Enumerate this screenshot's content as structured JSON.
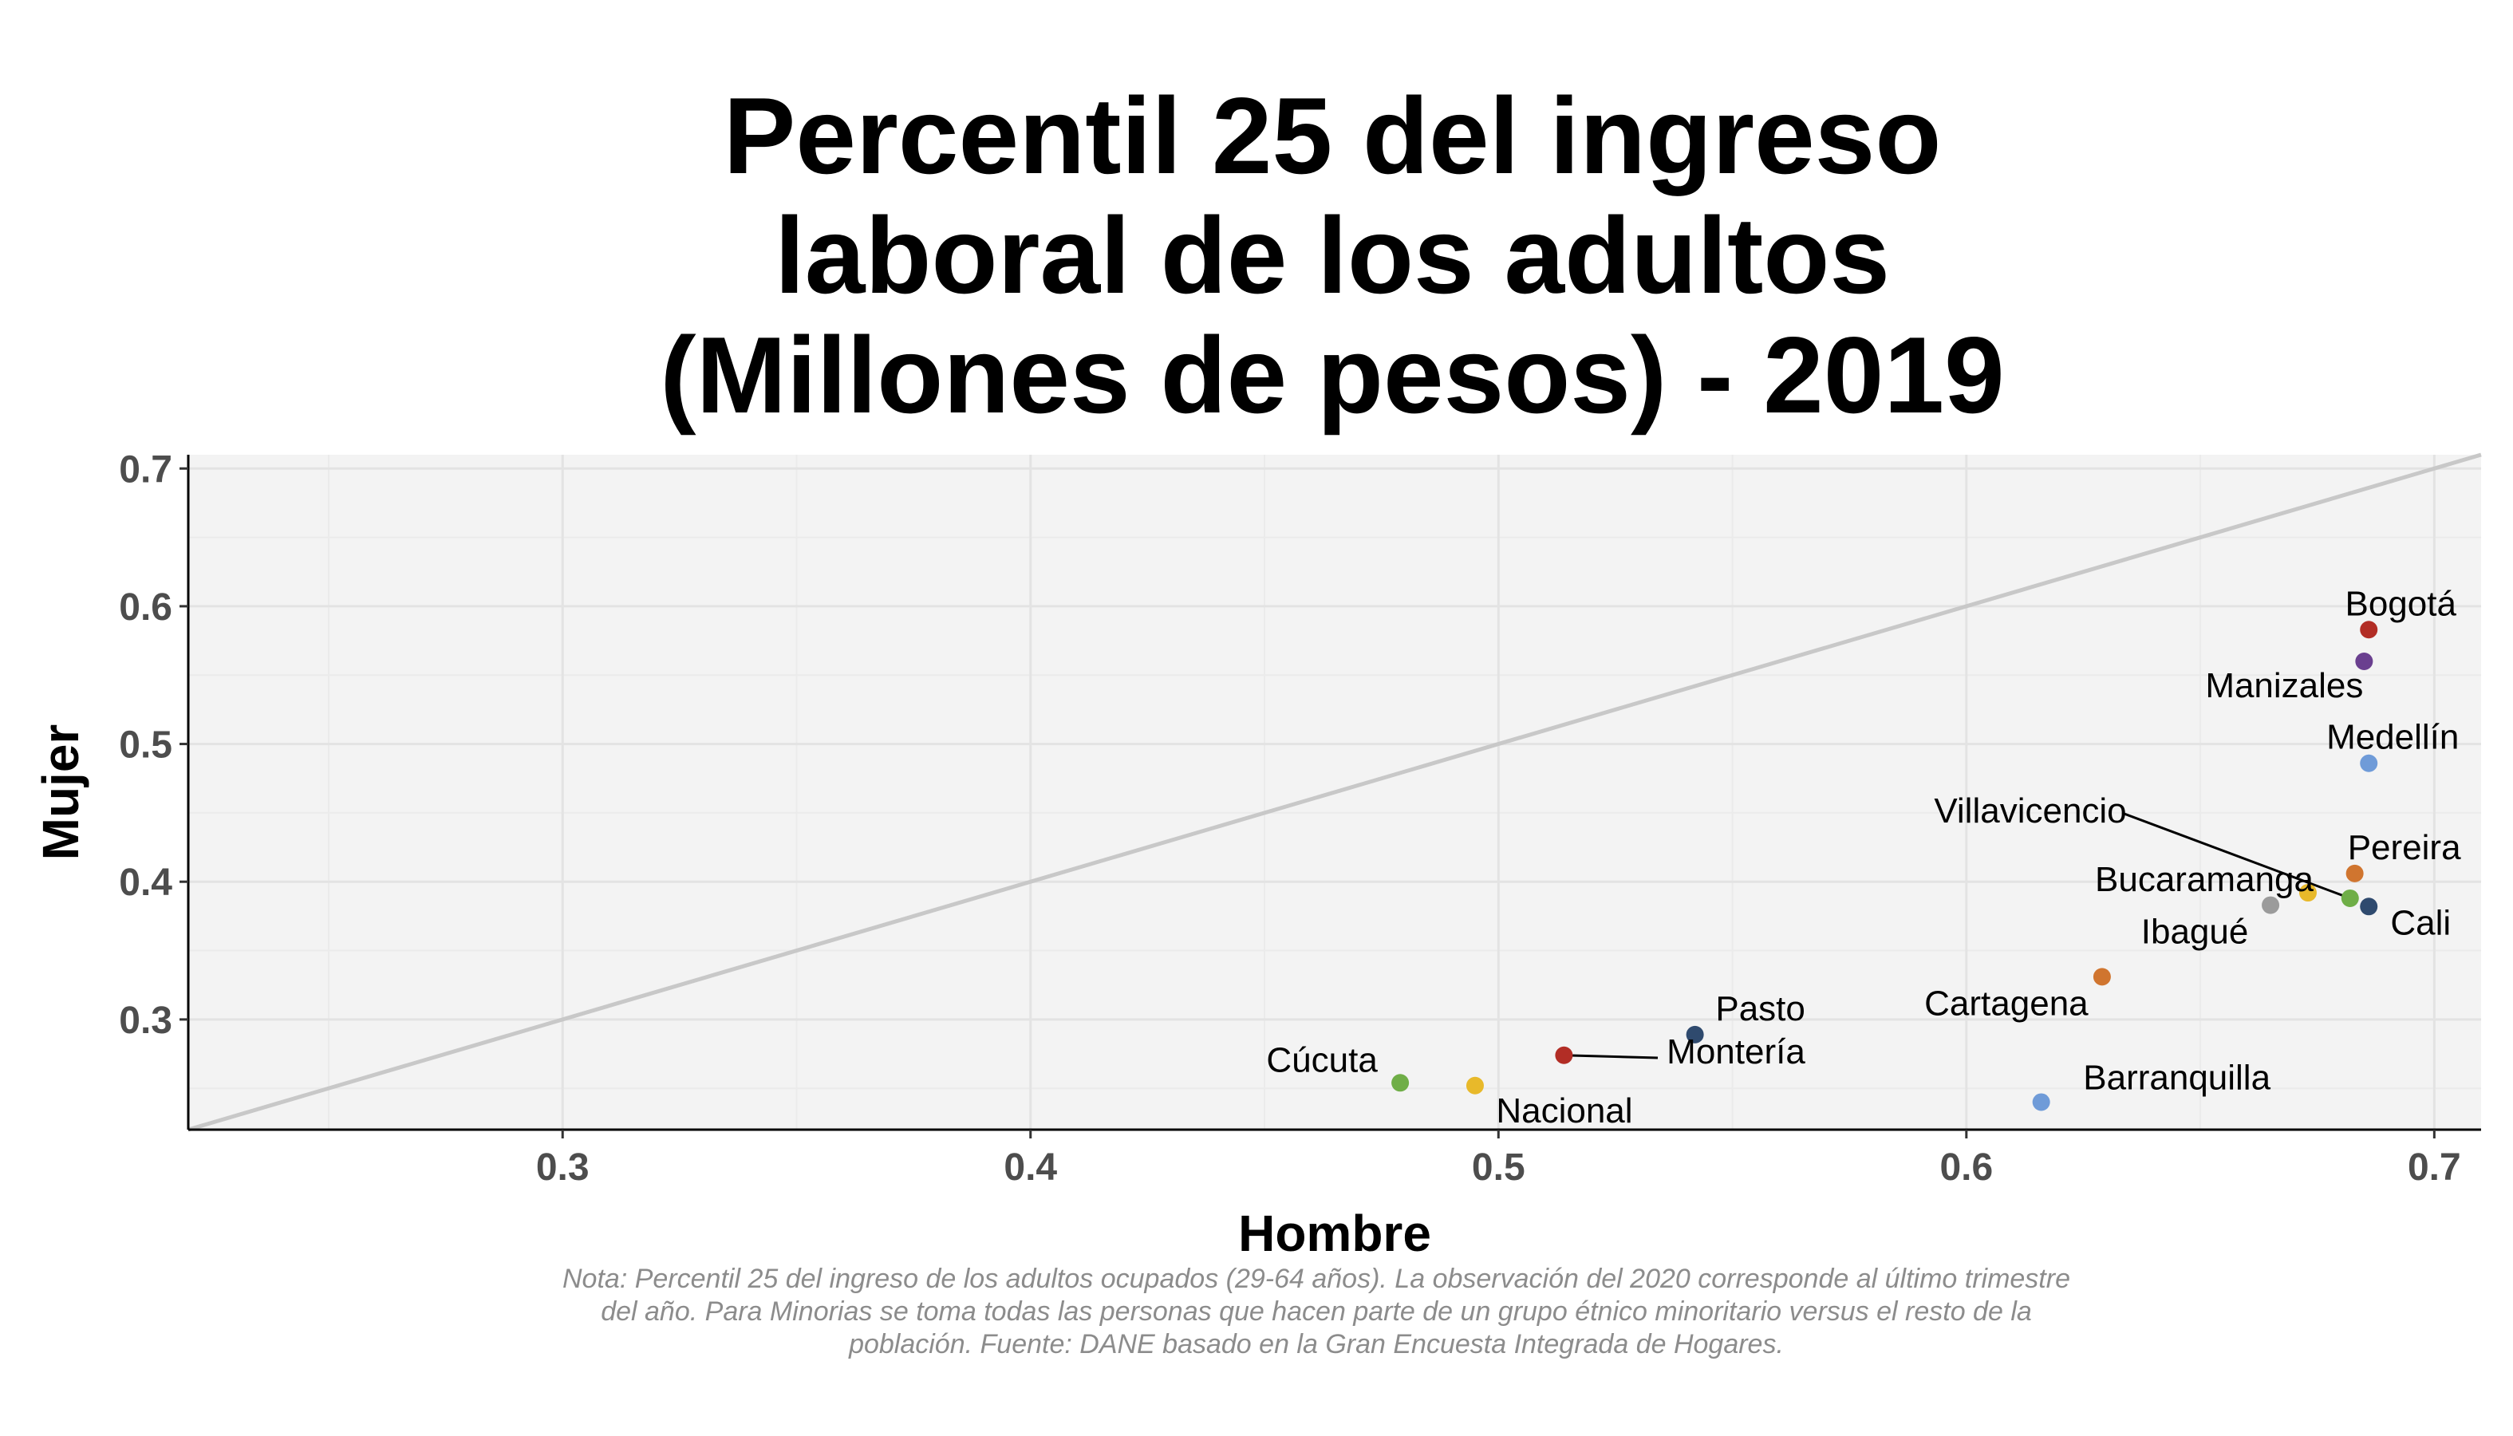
{
  "chart_data": {
    "type": "scatter",
    "title_lines": [
      "Percentil 25 del ingreso",
      "laboral de los adultos",
      "(Millones de pesos) - 2019"
    ],
    "xlabel": "Hombre",
    "ylabel": "Mujer",
    "xlim": [
      0.22,
      0.71
    ],
    "ylim": [
      0.22,
      0.71
    ],
    "xticks": [
      "0.3",
      "0.4",
      "0.5",
      "0.6",
      "0.7"
    ],
    "yticks": [
      "0.3",
      "0.4",
      "0.5",
      "0.6",
      "0.7"
    ],
    "reference_line": "y = x",
    "grid": true,
    "legend": "none",
    "points": [
      {
        "label": "Bogotá",
        "x": 0.686,
        "y": 0.583,
        "color": "#b22d25"
      },
      {
        "label": "Manizales",
        "x": 0.685,
        "y": 0.56,
        "color": "#6a3f8f"
      },
      {
        "label": "Medellín",
        "x": 0.686,
        "y": 0.486,
        "color": "#6f9bd8"
      },
      {
        "label": "Pereira",
        "x": 0.683,
        "y": 0.406,
        "color": "#d0752f"
      },
      {
        "label": "Villavicencio",
        "x": 0.682,
        "y": 0.388,
        "color": "#6fae47"
      },
      {
        "label": "Cali",
        "x": 0.686,
        "y": 0.382,
        "color": "#2f4a6e"
      },
      {
        "label": "Bucaramanga",
        "x": 0.673,
        "y": 0.392,
        "color": "#e8b92a"
      },
      {
        "label": "Ibagué",
        "x": 0.665,
        "y": 0.383,
        "color": "#9b9b9b"
      },
      {
        "label": "Cartagena",
        "x": 0.629,
        "y": 0.331,
        "color": "#d0752f"
      },
      {
        "label": "Barranquilla",
        "x": 0.616,
        "y": 0.24,
        "color": "#6f9bd8"
      },
      {
        "label": "Pasto",
        "x": 0.542,
        "y": 0.289,
        "color": "#2f4a6e"
      },
      {
        "label": "Montería",
        "x": 0.514,
        "y": 0.274,
        "color": "#b22d25"
      },
      {
        "label": "Nacional",
        "x": 0.495,
        "y": 0.252,
        "color": "#e8b92a"
      },
      {
        "label": "Cúcuta",
        "x": 0.479,
        "y": 0.254,
        "color": "#6fae47"
      }
    ],
    "note": "Nota: Percentil 25 del ingreso de los adultos ocupados (29-64 años). La observación del 2020 corresponde al último trimestre del año. Para Minorias se toma todas las personas que hacen parte de un grupo étnico minoritario versus el resto de la población. Fuente: DANE basado en la Gran Encuesta Integrada de Hogares."
  }
}
